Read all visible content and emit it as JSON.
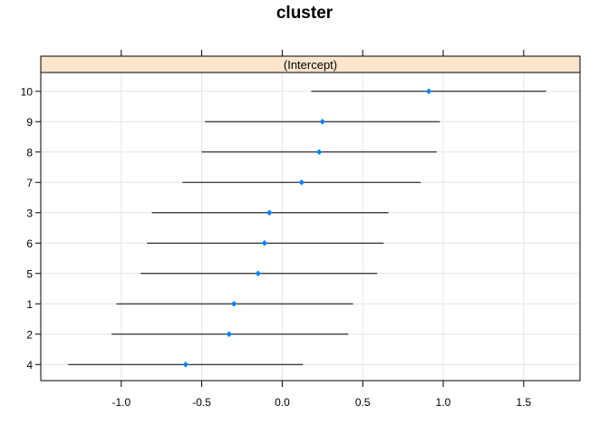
{
  "chart_data": {
    "type": "dotplot",
    "title": "cluster",
    "panel_strip": "(Intercept)",
    "categories": [
      "10",
      "9",
      "8",
      "7",
      "3",
      "6",
      "5",
      "1",
      "2",
      "4"
    ],
    "estimates": [
      0.91,
      0.25,
      0.23,
      0.12,
      -0.08,
      -0.11,
      -0.15,
      -0.3,
      -0.33,
      -0.6
    ],
    "lower": [
      0.18,
      -0.48,
      -0.5,
      -0.62,
      -0.81,
      -0.84,
      -0.88,
      -1.03,
      -1.06,
      -1.33
    ],
    "upper": [
      1.64,
      0.98,
      0.96,
      0.86,
      0.66,
      0.63,
      0.59,
      0.44,
      0.41,
      0.13
    ],
    "x_ticks": [
      -1.0,
      -0.5,
      0.0,
      0.5,
      1.0,
      1.5
    ],
    "x_tick_labels": [
      "-1.0",
      "-0.5",
      "0.0",
      "0.5",
      "1.0",
      "1.5"
    ],
    "xlim": [
      -1.5,
      1.85
    ],
    "grid": true,
    "point_color": "#0080ff",
    "strip_color": "#ffe5cc",
    "reference_line_x": 0
  }
}
